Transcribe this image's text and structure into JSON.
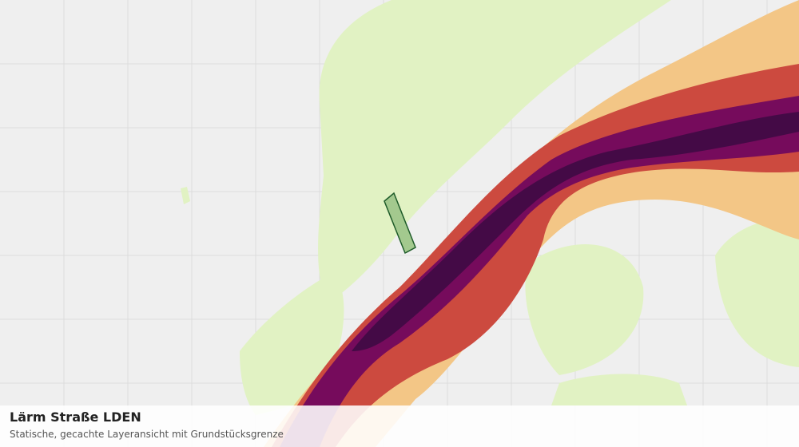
{
  "map": {
    "title": "Lärm Straße LDEN",
    "subtitle": "Statische, gecachte Layeransicht mit Grundstücksgrenze"
  }
}
